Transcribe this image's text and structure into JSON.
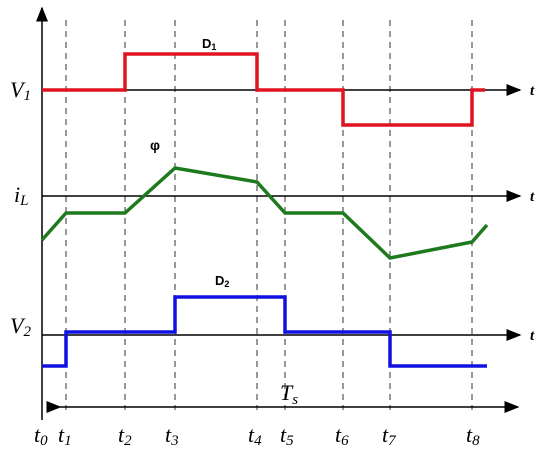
{
  "labels": {
    "v1": {
      "main": "V",
      "sub": "1"
    },
    "il": {
      "main": "i",
      "sub": "L"
    },
    "v2": {
      "main": "V",
      "sub": "2"
    },
    "ts": {
      "main": "T",
      "sub": "s"
    }
  },
  "axis_t": [
    "t",
    "t",
    "t"
  ],
  "annotations": {
    "d1": {
      "main": "D",
      "sub": "1"
    },
    "phi": "φ",
    "d2": {
      "main": "D",
      "sub": "2"
    }
  },
  "times": [
    {
      "main": "t",
      "sub": "0"
    },
    {
      "main": "t",
      "sub": "1"
    },
    {
      "main": "t",
      "sub": "2"
    },
    {
      "main": "t",
      "sub": "3"
    },
    {
      "main": "t",
      "sub": "4"
    },
    {
      "main": "t",
      "sub": "5"
    },
    {
      "main": "t",
      "sub": "6"
    },
    {
      "main": "t",
      "sub": "7"
    },
    {
      "main": "t",
      "sub": "8"
    }
  ]
}
